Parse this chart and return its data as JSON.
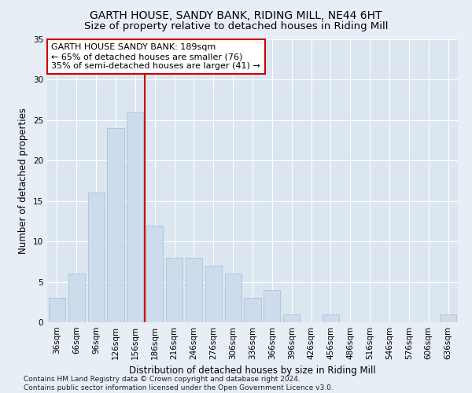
{
  "title": "GARTH HOUSE, SANDY BANK, RIDING MILL, NE44 6HT",
  "subtitle": "Size of property relative to detached houses in Riding Mill",
  "xlabel": "Distribution of detached houses by size in Riding Mill",
  "ylabel": "Number of detached properties",
  "bar_color": "#ccdcec",
  "bar_edge_color": "#aabccc",
  "categories": [
    "36sqm",
    "66sqm",
    "96sqm",
    "126sqm",
    "156sqm",
    "186sqm",
    "216sqm",
    "246sqm",
    "276sqm",
    "306sqm",
    "336sqm",
    "366sqm",
    "396sqm",
    "426sqm",
    "456sqm",
    "486sqm",
    "516sqm",
    "546sqm",
    "576sqm",
    "606sqm",
    "636sqm"
  ],
  "values": [
    3,
    6,
    16,
    24,
    26,
    12,
    8,
    8,
    7,
    6,
    3,
    4,
    1,
    0,
    1,
    0,
    0,
    0,
    0,
    0,
    1
  ],
  "vline_color": "#cc0000",
  "annotation_text": "GARTH HOUSE SANDY BANK: 189sqm\n← 65% of detached houses are smaller (76)\n35% of semi-detached houses are larger (41) →",
  "annotation_box_color": "#ffffff",
  "annotation_box_edge_color": "#cc0000",
  "ylim": [
    0,
    35
  ],
  "yticks": [
    0,
    5,
    10,
    15,
    20,
    25,
    30,
    35
  ],
  "background_color": "#e8eef5",
  "plot_background_color": "#dce6f0",
  "grid_color": "#ffffff",
  "footnote": "Contains HM Land Registry data © Crown copyright and database right 2024.\nContains public sector information licensed under the Open Government Licence v3.0.",
  "title_fontsize": 10,
  "subtitle_fontsize": 9.5,
  "xlabel_fontsize": 8.5,
  "ylabel_fontsize": 8.5,
  "footnote_fontsize": 6.5,
  "tick_fontsize": 7.5,
  "annot_fontsize": 8
}
